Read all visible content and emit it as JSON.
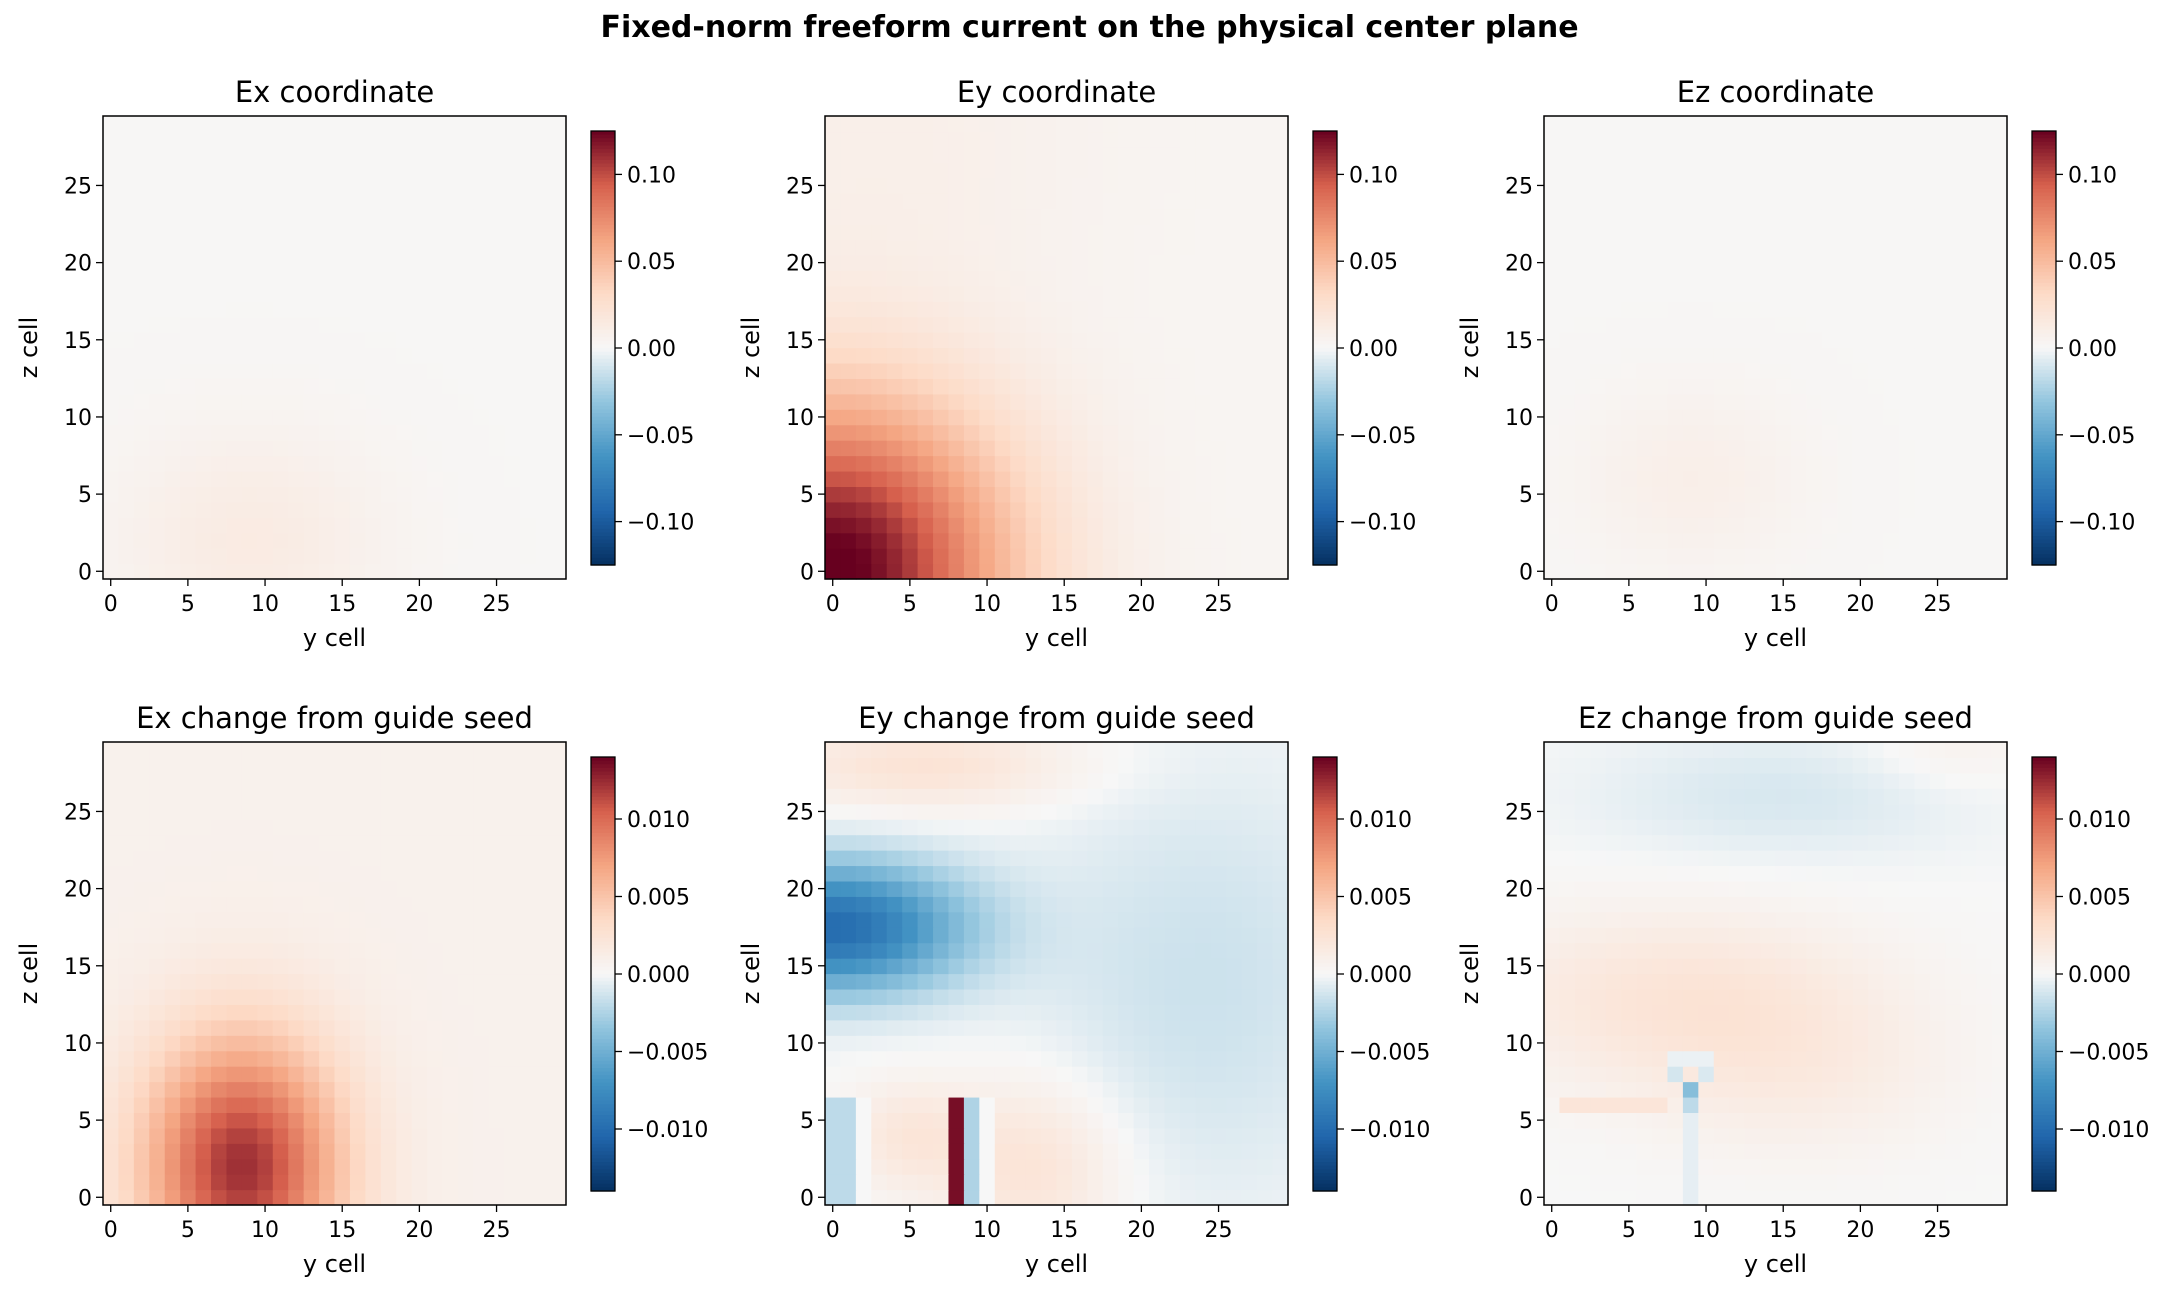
{
  "figure_title": "Fixed-norm freeform current on the physical center plane",
  "chart_data": [
    {
      "type": "heatmap",
      "title": "Ex coordinate",
      "xlabel": "y cell",
      "ylabel": "z cell",
      "grid_size": 30,
      "xlim": [
        -0.5,
        29.5
      ],
      "ylim": [
        -0.5,
        29.5
      ],
      "xticks": [
        0,
        5,
        10,
        15,
        20,
        25
      ],
      "yticks": [
        0,
        5,
        10,
        15,
        20,
        25
      ],
      "colormap": "RdBu_r",
      "vmin": -0.125,
      "vmax": 0.125,
      "colorbar_ticks": [
        0.1,
        0.05,
        0.0,
        -0.05,
        -0.1
      ],
      "colorbar_tick_labels": [
        "0.10",
        "0.05",
        "0.00",
        "−0.05",
        "−0.10"
      ],
      "field": {
        "kind": "gauss",
        "components": [
          {
            "amp": 0.012,
            "cx": 9,
            "cz": 2,
            "sx": 6,
            "sz": 5
          }
        ],
        "offset": 0.0015
      }
    },
    {
      "type": "heatmap",
      "title": "Ey coordinate",
      "xlabel": "y cell",
      "ylabel": "z cell",
      "grid_size": 30,
      "xlim": [
        -0.5,
        29.5
      ],
      "ylim": [
        -0.5,
        29.5
      ],
      "xticks": [
        0,
        5,
        10,
        15,
        20,
        25
      ],
      "yticks": [
        0,
        5,
        10,
        15,
        20,
        25
      ],
      "colormap": "RdBu_r",
      "vmin": -0.125,
      "vmax": 0.125,
      "colorbar_ticks": [
        0.1,
        0.05,
        0.0,
        -0.05,
        -0.1
      ],
      "colorbar_tick_labels": [
        "0.10",
        "0.05",
        "0.00",
        "−0.05",
        "−0.10"
      ],
      "field": {
        "kind": "gauss",
        "components": [
          {
            "amp": 0.125,
            "cx": 0,
            "cz": 0,
            "sx": 8,
            "sz": 8
          },
          {
            "amp": 0.006,
            "cx": 3,
            "cz": 28,
            "sx": 10,
            "sz": 8
          }
        ],
        "offset": 0.003
      }
    },
    {
      "type": "heatmap",
      "title": "Ez coordinate",
      "xlabel": "y cell",
      "ylabel": "z cell",
      "grid_size": 30,
      "xlim": [
        -0.5,
        29.5
      ],
      "ylim": [
        -0.5,
        29.5
      ],
      "xticks": [
        0,
        5,
        10,
        15,
        20,
        25
      ],
      "yticks": [
        0,
        5,
        10,
        15,
        20,
        25
      ],
      "colormap": "RdBu_r",
      "vmin": -0.125,
      "vmax": 0.125,
      "colorbar_ticks": [
        0.1,
        0.05,
        0.0,
        -0.05,
        -0.1
      ],
      "colorbar_tick_labels": [
        "0.10",
        "0.05",
        "0.00",
        "−0.05",
        "−0.10"
      ],
      "field": {
        "kind": "gauss",
        "components": [
          {
            "amp": 0.008,
            "cx": 9,
            "cz": 6,
            "sx": 5,
            "sz": 4
          }
        ],
        "offset": 0.0015
      }
    },
    {
      "type": "heatmap",
      "title": "Ex change from guide seed",
      "xlabel": "y cell",
      "ylabel": "z cell",
      "grid_size": 30,
      "xlim": [
        -0.5,
        29.5
      ],
      "ylim": [
        -0.5,
        29.5
      ],
      "xticks": [
        0,
        5,
        10,
        15,
        20,
        25
      ],
      "yticks": [
        0,
        5,
        10,
        15,
        20,
        25
      ],
      "colormap": "RdBu_r",
      "vmin": -0.014,
      "vmax": 0.014,
      "colorbar_ticks": [
        0.01,
        0.005,
        0.0,
        -0.005,
        -0.01
      ],
      "colorbar_tick_labels": [
        "0.010",
        "0.005",
        "0.000",
        "−0.005",
        "−0.010"
      ],
      "field": {
        "kind": "gauss",
        "components": [
          {
            "amp": 0.0115,
            "cx": 8.5,
            "cz": 2,
            "sx": 4.5,
            "sz": 6
          }
        ],
        "offset": 0.0008
      }
    },
    {
      "type": "heatmap",
      "title": "Ey change from guide seed",
      "xlabel": "y cell",
      "ylabel": "z cell",
      "grid_size": 30,
      "xlim": [
        -0.5,
        29.5
      ],
      "ylim": [
        -0.5,
        29.5
      ],
      "xticks": [
        0,
        5,
        10,
        15,
        20,
        25
      ],
      "yticks": [
        0,
        5,
        10,
        15,
        20,
        25
      ],
      "colormap": "RdBu_r",
      "vmin": -0.014,
      "vmax": 0.014,
      "colorbar_ticks": [
        0.01,
        0.005,
        0.0,
        -0.005,
        -0.01
      ],
      "colorbar_tick_labels": [
        "0.010",
        "0.005",
        "0.000",
        "−0.005",
        "−0.010"
      ],
      "field": {
        "kind": "gauss",
        "components": [
          {
            "amp": -0.01,
            "cx": 0,
            "cz": 17.5,
            "sx": 6,
            "sz": 3
          },
          {
            "amp": -0.0015,
            "cx": 24,
            "cz": 14,
            "sx": 8,
            "sz": 10
          },
          {
            "amp": 0.0025,
            "cx": 6,
            "cz": 28,
            "sx": 7,
            "sz": 2
          },
          {
            "amp": 0.0025,
            "cx": 13,
            "cz": 2,
            "sx": 4,
            "sz": 4
          },
          {
            "amp": 0.002,
            "cx": 5,
            "cz": 4,
            "sx": 3,
            "sz": 2.5
          }
        ],
        "offset": 0.0,
        "overrides": [
          {
            "x0": 0,
            "x1": 1,
            "z0": 0,
            "z1": 6,
            "value": -0.002
          },
          {
            "x0": 2,
            "x1": 2,
            "z0": 0,
            "z1": 6,
            "value": 0.0
          },
          {
            "x0": 8,
            "x1": 8,
            "z0": 0,
            "z1": 6,
            "value": 0.0135
          },
          {
            "x0": 9,
            "x1": 9,
            "z0": 0,
            "z1": 6,
            "value": -0.0025
          },
          {
            "x0": 10,
            "x1": 10,
            "z0": 0,
            "z1": 6,
            "value": 0.0
          }
        ]
      }
    },
    {
      "type": "heatmap",
      "title": "Ez change from guide seed",
      "xlabel": "y cell",
      "ylabel": "z cell",
      "grid_size": 30,
      "xlim": [
        -0.5,
        29.5
      ],
      "ylim": [
        -0.5,
        29.5
      ],
      "xticks": [
        0,
        5,
        10,
        15,
        20,
        25
      ],
      "yticks": [
        0,
        5,
        10,
        15,
        20,
        25
      ],
      "colormap": "RdBu_r",
      "vmin": -0.014,
      "vmax": 0.014,
      "colorbar_ticks": [
        0.01,
        0.005,
        0.0,
        -0.005,
        -0.01
      ],
      "colorbar_tick_labels": [
        "0.010",
        "0.005",
        "0.000",
        "−0.005",
        "−0.010"
      ],
      "field": {
        "kind": "gauss",
        "components": [
          {
            "amp": 0.0022,
            "cx": 8,
            "cz": 13,
            "sx": 9,
            "sz": 4
          },
          {
            "amp": 0.0012,
            "cx": 16,
            "cz": 8,
            "sx": 7,
            "sz": 4
          },
          {
            "amp": -0.0011,
            "cx": 15,
            "cz": 26,
            "sx": 9,
            "sz": 3
          },
          {
            "amp": 0.0008,
            "cx": 26,
            "cz": 29,
            "sx": 4,
            "sz": 2
          }
        ],
        "offset": 0.0,
        "overrides": [
          {
            "x0": 1,
            "x1": 7,
            "z0": 6,
            "z1": 6,
            "value": 0.0022
          },
          {
            "x0": 9,
            "x1": 9,
            "z0": 7,
            "z1": 7,
            "value": -0.004
          },
          {
            "x0": 9,
            "x1": 9,
            "z0": 6,
            "z1": 6,
            "value": -0.002
          },
          {
            "x0": 9,
            "x1": 9,
            "z0": 0,
            "z1": 5,
            "value": -0.0006
          },
          {
            "x0": 8,
            "x1": 8,
            "z0": 8,
            "z1": 8,
            "value": -0.0012
          },
          {
            "x0": 10,
            "x1": 10,
            "z0": 8,
            "z1": 8,
            "value": -0.001
          },
          {
            "x0": 8,
            "x1": 10,
            "z0": 9,
            "z1": 9,
            "value": -0.0004
          }
        ]
      }
    }
  ]
}
